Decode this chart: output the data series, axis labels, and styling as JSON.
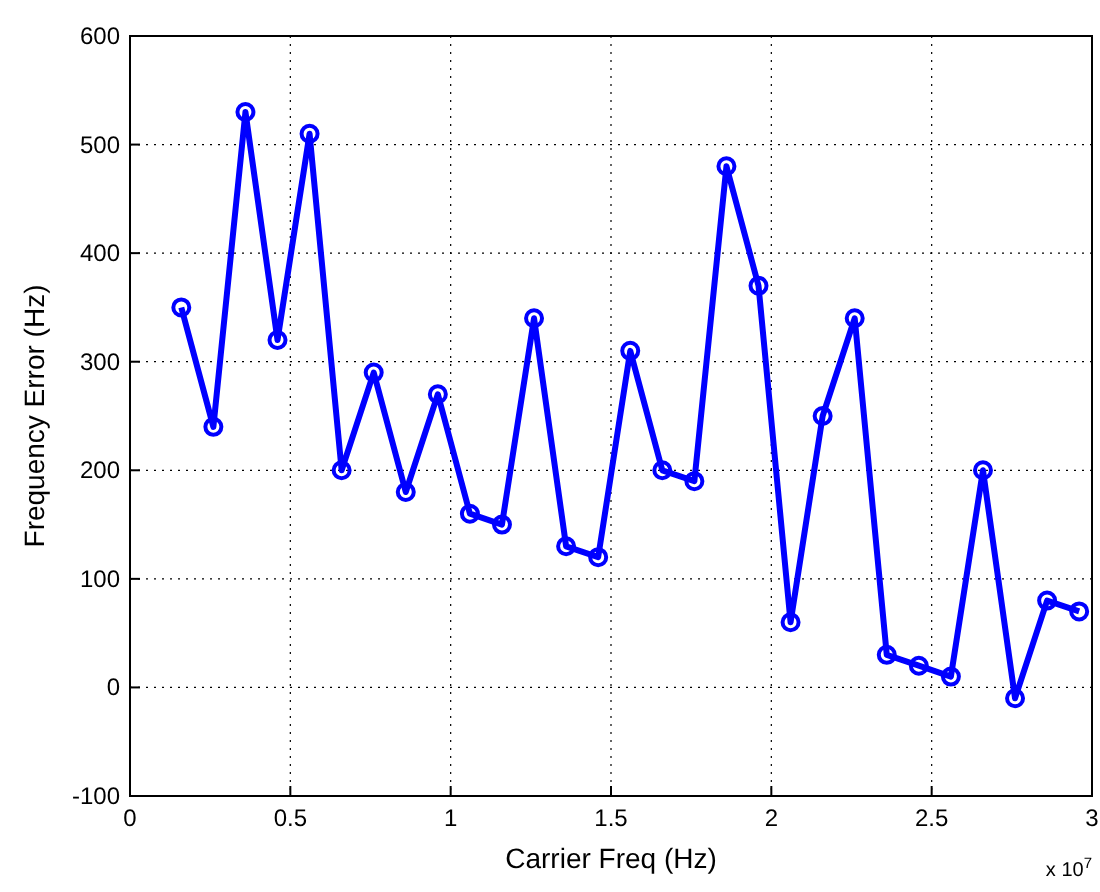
{
  "chart_data": {
    "type": "line",
    "xlabel": "Carrier Freq (Hz)",
    "ylabel": "Frequency Error (Hz)",
    "x": [
      0.16,
      0.26,
      0.36,
      0.46,
      0.56,
      0.66,
      0.76,
      0.86,
      0.96,
      1.06,
      1.16,
      1.26,
      1.36,
      1.46,
      1.56,
      1.66,
      1.76,
      1.86,
      1.96,
      2.06,
      2.16,
      2.26,
      2.36,
      2.46,
      2.56,
      2.66,
      2.76,
      2.86,
      2.96
    ],
    "series": [
      {
        "color": "#0000ff",
        "values": [
          350,
          240,
          530,
          320,
          510,
          200,
          290,
          180,
          270,
          160,
          150,
          340,
          130,
          120,
          310,
          200,
          190,
          480,
          370,
          60,
          250,
          340,
          30,
          20,
          10,
          200,
          -10,
          80,
          70
        ]
      }
    ],
    "xlim": [
      0,
      3
    ],
    "xticks": [
      0,
      0.5,
      1,
      1.5,
      2,
      2.5,
      3
    ],
    "ylim": [
      -100,
      600
    ],
    "yticks": [
      -100,
      0,
      100,
      200,
      300,
      400,
      500,
      600
    ],
    "annotations": [
      "x 10$^{7}$"
    ],
    "grid": true,
    "marker": "circle",
    "line_style": "solid"
  }
}
